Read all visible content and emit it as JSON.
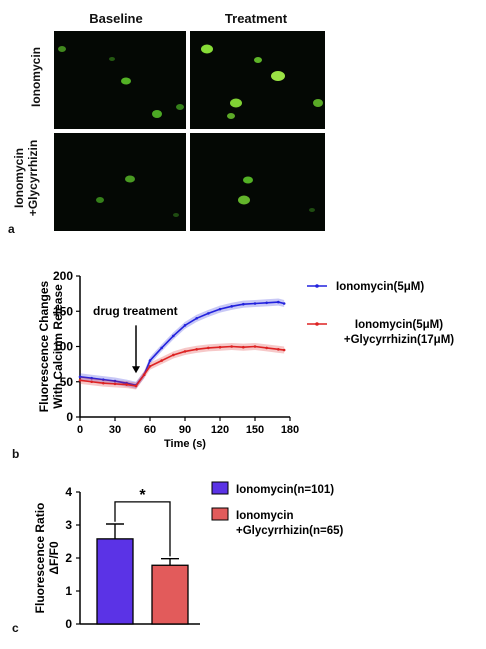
{
  "panel_a": {
    "letter": "a",
    "columns": [
      "Baseline",
      "Treatment"
    ],
    "rows": [
      "Ionomycin",
      "Ionomycin\n+Glycyrrhizin"
    ]
  },
  "panel_b": {
    "letter": "b",
    "annotation": "drug treatment",
    "chart_data": {
      "type": "line",
      "ylabel": "Fluorescence Changes\nWith Calcium Release",
      "xlabel": "Time (s)",
      "xlim": [
        0,
        180
      ],
      "ylim": [
        0,
        200
      ],
      "xticks": [
        "0",
        "30",
        "60",
        "90",
        "120",
        "150",
        "180"
      ],
      "yticks": [
        "0",
        "50",
        "100",
        "150",
        "200"
      ],
      "legend_position": "top-right",
      "series": [
        {
          "name": "Ionomycin(5μM)",
          "color": "#2222dd",
          "x": [
            0,
            10,
            20,
            30,
            40,
            48,
            55,
            60,
            70,
            80,
            90,
            100,
            110,
            120,
            130,
            140,
            150,
            160,
            170,
            175
          ],
          "y": [
            57,
            55,
            53,
            51,
            48,
            45,
            60,
            80,
            98,
            115,
            130,
            140,
            147,
            153,
            157,
            160,
            161,
            162,
            163,
            161
          ]
        },
        {
          "name": "Ionomycin(5μM)\n+Glycyrrhizin(17μM)",
          "color": "#dd2222",
          "x": [
            0,
            10,
            20,
            30,
            40,
            48,
            55,
            60,
            70,
            80,
            90,
            100,
            110,
            120,
            130,
            140,
            150,
            160,
            170,
            175
          ],
          "y": [
            52,
            50,
            48,
            47,
            46,
            44,
            60,
            72,
            80,
            88,
            93,
            96,
            98,
            99,
            100,
            99,
            100,
            98,
            96,
            95
          ]
        }
      ]
    }
  },
  "panel_c": {
    "letter": "c",
    "significance": "*",
    "chart_data": {
      "type": "bar",
      "ylabel": "Fluorescence Ratio\nΔF/F0",
      "ylim": [
        0,
        4
      ],
      "yticks": [
        "0",
        "1",
        "2",
        "3",
        "4"
      ],
      "categories": [
        "Ionomycin(n=101)",
        "Ionomycin\n+Glycyrrhizin(n=65)"
      ],
      "values": [
        2.58,
        1.78
      ],
      "errors": [
        0.45,
        0.2
      ],
      "colors": [
        "#5b33e6",
        "#e25b5b"
      ],
      "legend_position": "right"
    }
  }
}
